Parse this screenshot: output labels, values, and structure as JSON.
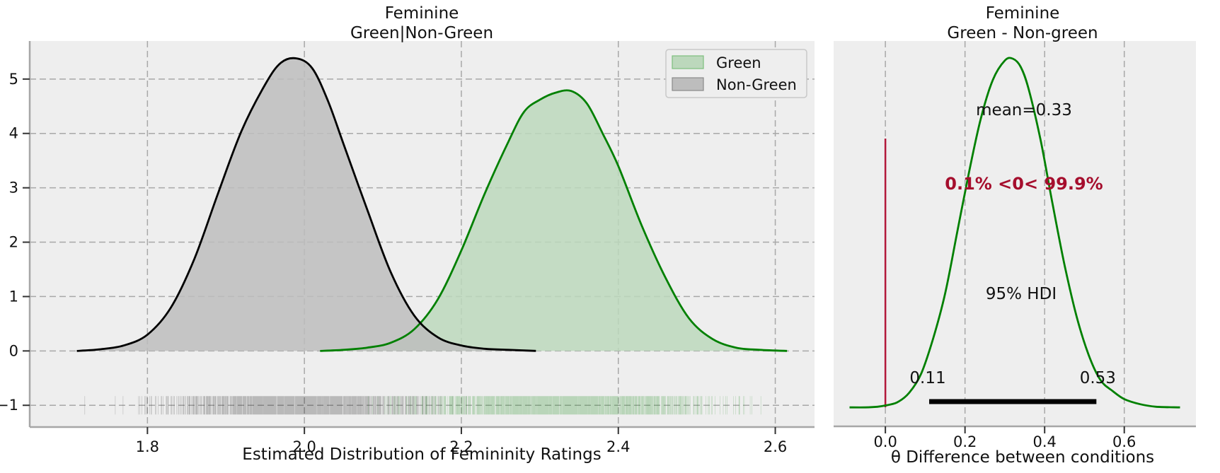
{
  "chart_data": [
    {
      "type": "area",
      "title": "Feminine",
      "subtitle": "Green|Non-Green",
      "xlabel": "Estimated Distribution of Femininity Ratings",
      "ylabel": "",
      "xlim": [
        1.65,
        2.65
      ],
      "ylim": [
        -1.4,
        5.7
      ],
      "xticks": [
        "1.8",
        "2.0",
        "2.2",
        "2.4",
        "2.6"
      ],
      "yticks": [
        "−1",
        "0",
        "1",
        "2",
        "3",
        "4",
        "5"
      ],
      "grid": true,
      "legend": "top-right",
      "series": [
        {
          "name": "Green",
          "line_color": "#008000",
          "fill_color": "#bcd8bc",
          "x": [
            2.02,
            2.05,
            2.08,
            2.11,
            2.14,
            2.17,
            2.2,
            2.23,
            2.26,
            2.28,
            2.3,
            2.32,
            2.34,
            2.36,
            2.38,
            2.4,
            2.43,
            2.46,
            2.49,
            2.52,
            2.55,
            2.58,
            2.615
          ],
          "y": [
            0.0,
            0.02,
            0.06,
            0.15,
            0.4,
            0.95,
            1.85,
            2.9,
            3.85,
            4.4,
            4.62,
            4.75,
            4.78,
            4.55,
            4.0,
            3.4,
            2.3,
            1.35,
            0.6,
            0.22,
            0.06,
            0.02,
            0.0
          ]
        },
        {
          "name": "Non-Green",
          "line_color": "#000000",
          "fill_color": "#bdbdbd",
          "x": [
            1.71,
            1.74,
            1.77,
            1.8,
            1.83,
            1.86,
            1.89,
            1.92,
            1.95,
            1.97,
            1.99,
            2.01,
            2.03,
            2.05,
            2.08,
            2.11,
            2.14,
            2.17,
            2.2,
            2.23,
            2.26,
            2.295
          ],
          "y": [
            0.0,
            0.03,
            0.1,
            0.3,
            0.8,
            1.7,
            2.9,
            4.05,
            4.9,
            5.3,
            5.38,
            5.2,
            4.6,
            3.8,
            2.6,
            1.45,
            0.65,
            0.25,
            0.1,
            0.04,
            0.02,
            0.0
          ]
        }
      ],
      "rug": [
        {
          "series": "Non-Green",
          "y": -1,
          "range": [
            1.71,
            2.295
          ],
          "center": 1.99,
          "spread": 0.075,
          "color": "#000000"
        },
        {
          "series": "Green",
          "y": -1,
          "range": [
            2.02,
            2.615
          ],
          "center": 2.33,
          "spread": 0.085,
          "color": "#008000"
        }
      ]
    },
    {
      "type": "line",
      "title": "Feminine",
      "subtitle": "Green - Non-green",
      "xlabel": "θ Difference between conditions",
      "ylabel": "",
      "xlim": [
        -0.13,
        0.78
      ],
      "xticks": [
        "0.0",
        "0.2",
        "0.4",
        "0.6"
      ],
      "grid": true,
      "series": [
        {
          "line_color": "#008000",
          "x": [
            -0.09,
            -0.05,
            -0.02,
            0.0,
            0.03,
            0.06,
            0.09,
            0.12,
            0.15,
            0.18,
            0.21,
            0.24,
            0.27,
            0.3,
            0.32,
            0.34,
            0.36,
            0.39,
            0.42,
            0.45,
            0.48,
            0.51,
            0.54,
            0.57,
            0.6,
            0.64,
            0.68,
            0.74
          ],
          "y": [
            0.02,
            0.02,
            0.03,
            0.05,
            0.1,
            0.25,
            0.55,
            1.1,
            1.8,
            2.75,
            3.7,
            4.55,
            5.15,
            5.45,
            5.48,
            5.35,
            5.0,
            4.2,
            3.2,
            2.25,
            1.45,
            0.85,
            0.45,
            0.28,
            0.15,
            0.07,
            0.03,
            0.02
          ]
        }
      ],
      "reference_line": {
        "x": 0.0,
        "color": "#b2183a"
      },
      "hdi": {
        "label": "95% HDI",
        "low": 0.11,
        "high": 0.53,
        "low_label": "0.11",
        "high_label": "0.53"
      },
      "mean_label": "mean=0.33",
      "prob_label": "0.1% <0< 99.9%",
      "prob_color": "#a50e2d"
    }
  ]
}
